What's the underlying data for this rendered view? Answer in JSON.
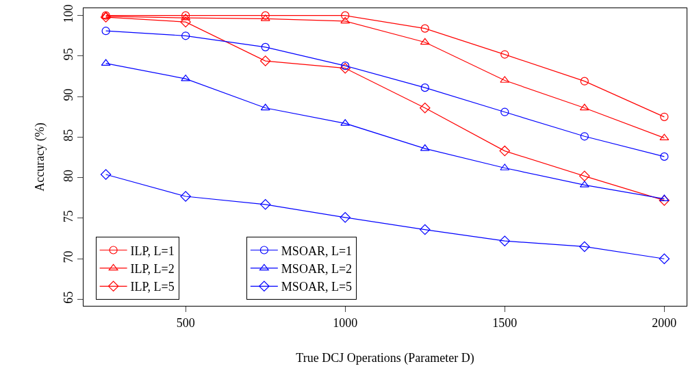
{
  "chart_data": {
    "type": "line",
    "xlabel": "True DCJ Operations (Parameter D)",
    "ylabel": "Accuracy (%)",
    "x": [
      250,
      500,
      750,
      1000,
      1250,
      1500,
      1750,
      2000
    ],
    "xlim": [
      180,
      2070
    ],
    "xticks": [
      500,
      1000,
      1500,
      2000
    ],
    "ylim": [
      64.2,
      100.9
    ],
    "yticks": [
      65,
      70,
      75,
      80,
      85,
      90,
      95,
      100
    ],
    "grid": false,
    "legend": "bottom left",
    "line_style": "solid",
    "series": [
      {
        "name": "ILP, L=1",
        "color": "#ff0000",
        "marker": "circle",
        "values": [
          100,
          100,
          100,
          100,
          98.4,
          95.2,
          91.9,
          87.5
        ]
      },
      {
        "name": "ILP, L=2",
        "color": "#ff0000",
        "marker": "triangle",
        "values": [
          99.9,
          99.7,
          99.6,
          99.3,
          96.7,
          92.0,
          88.6,
          84.9
        ]
      },
      {
        "name": "ILP, L=5",
        "color": "#ff0000",
        "marker": "diamond",
        "values": [
          99.8,
          99.2,
          94.4,
          93.5,
          88.6,
          83.3,
          80.2,
          77.2
        ]
      },
      {
        "name": "MSOAR, L=1",
        "color": "#0000ff",
        "marker": "circle",
        "values": [
          98.1,
          97.5,
          96.1,
          93.8,
          91.1,
          88.1,
          85.1,
          82.6
        ]
      },
      {
        "name": "MSOAR, L=2",
        "color": "#0000ff",
        "marker": "triangle",
        "values": [
          94.1,
          92.2,
          88.6,
          86.7,
          83.6,
          81.2,
          79.1,
          77.4
        ]
      },
      {
        "name": "MSOAR, L=5",
        "color": "#0000ff",
        "marker": "diamond",
        "values": [
          80.4,
          77.7,
          76.7,
          75.1,
          73.6,
          72.2,
          71.5,
          70.0
        ]
      }
    ]
  }
}
